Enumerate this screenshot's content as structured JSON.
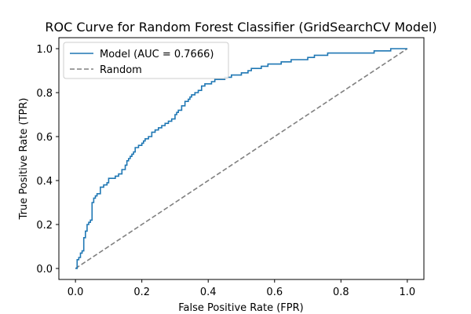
{
  "chart_data": {
    "type": "line",
    "title": "ROC Curve for  Random Forest Classifier (GridSearchCV Model)",
    "xlabel": "False Positive Rate (FPR)",
    "ylabel": "True Positive Rate (TPR)",
    "xlim": [
      -0.05,
      1.05
    ],
    "ylim": [
      -0.05,
      1.05
    ],
    "x_ticks": [
      0.0,
      0.2,
      0.4,
      0.6,
      0.8,
      1.0
    ],
    "y_ticks": [
      0.0,
      0.2,
      0.4,
      0.6,
      0.8,
      1.0
    ],
    "x_tick_labels": [
      "0.0",
      "0.2",
      "0.4",
      "0.6",
      "0.8",
      "1.0"
    ],
    "y_tick_labels": [
      "0.0",
      "0.2",
      "0.4",
      "0.6",
      "0.8",
      "1.0"
    ],
    "grid": false,
    "legend_position": "upper left",
    "series": [
      {
        "name": "Model (AUC = 0.7666)",
        "color": "#1f77b4",
        "style": "solid",
        "step": true,
        "x": [
          0.0,
          0.005,
          0.01,
          0.015,
          0.02,
          0.025,
          0.03,
          0.035,
          0.04,
          0.045,
          0.05,
          0.055,
          0.06,
          0.065,
          0.075,
          0.085,
          0.095,
          0.1,
          0.11,
          0.12,
          0.13,
          0.14,
          0.15,
          0.155,
          0.16,
          0.165,
          0.17,
          0.175,
          0.18,
          0.19,
          0.2,
          0.205,
          0.21,
          0.22,
          0.23,
          0.24,
          0.25,
          0.26,
          0.27,
          0.28,
          0.29,
          0.3,
          0.305,
          0.31,
          0.32,
          0.33,
          0.34,
          0.345,
          0.35,
          0.36,
          0.37,
          0.38,
          0.39,
          0.4,
          0.41,
          0.42,
          0.45,
          0.46,
          0.47,
          0.48,
          0.5,
          0.52,
          0.53,
          0.56,
          0.58,
          0.6,
          0.62,
          0.65,
          0.68,
          0.7,
          0.72,
          0.74,
          0.76,
          0.8,
          0.82,
          0.84,
          0.86,
          0.88,
          0.9,
          0.95,
          1.0
        ],
        "y": [
          0.0,
          0.04,
          0.05,
          0.07,
          0.08,
          0.14,
          0.17,
          0.2,
          0.21,
          0.22,
          0.3,
          0.32,
          0.33,
          0.34,
          0.37,
          0.38,
          0.39,
          0.41,
          0.41,
          0.42,
          0.43,
          0.45,
          0.47,
          0.49,
          0.5,
          0.51,
          0.52,
          0.53,
          0.55,
          0.56,
          0.57,
          0.58,
          0.59,
          0.6,
          0.62,
          0.63,
          0.64,
          0.65,
          0.66,
          0.67,
          0.68,
          0.7,
          0.71,
          0.72,
          0.74,
          0.76,
          0.77,
          0.78,
          0.79,
          0.8,
          0.81,
          0.83,
          0.84,
          0.84,
          0.85,
          0.86,
          0.87,
          0.87,
          0.88,
          0.88,
          0.89,
          0.9,
          0.91,
          0.92,
          0.93,
          0.93,
          0.94,
          0.95,
          0.95,
          0.96,
          0.97,
          0.97,
          0.98,
          0.98,
          0.98,
          0.98,
          0.98,
          0.98,
          0.99,
          1.0,
          1.0
        ]
      },
      {
        "name": "Random",
        "color": "#808080",
        "style": "dashed",
        "step": false,
        "x": [
          0,
          1
        ],
        "y": [
          0,
          1
        ]
      }
    ]
  }
}
